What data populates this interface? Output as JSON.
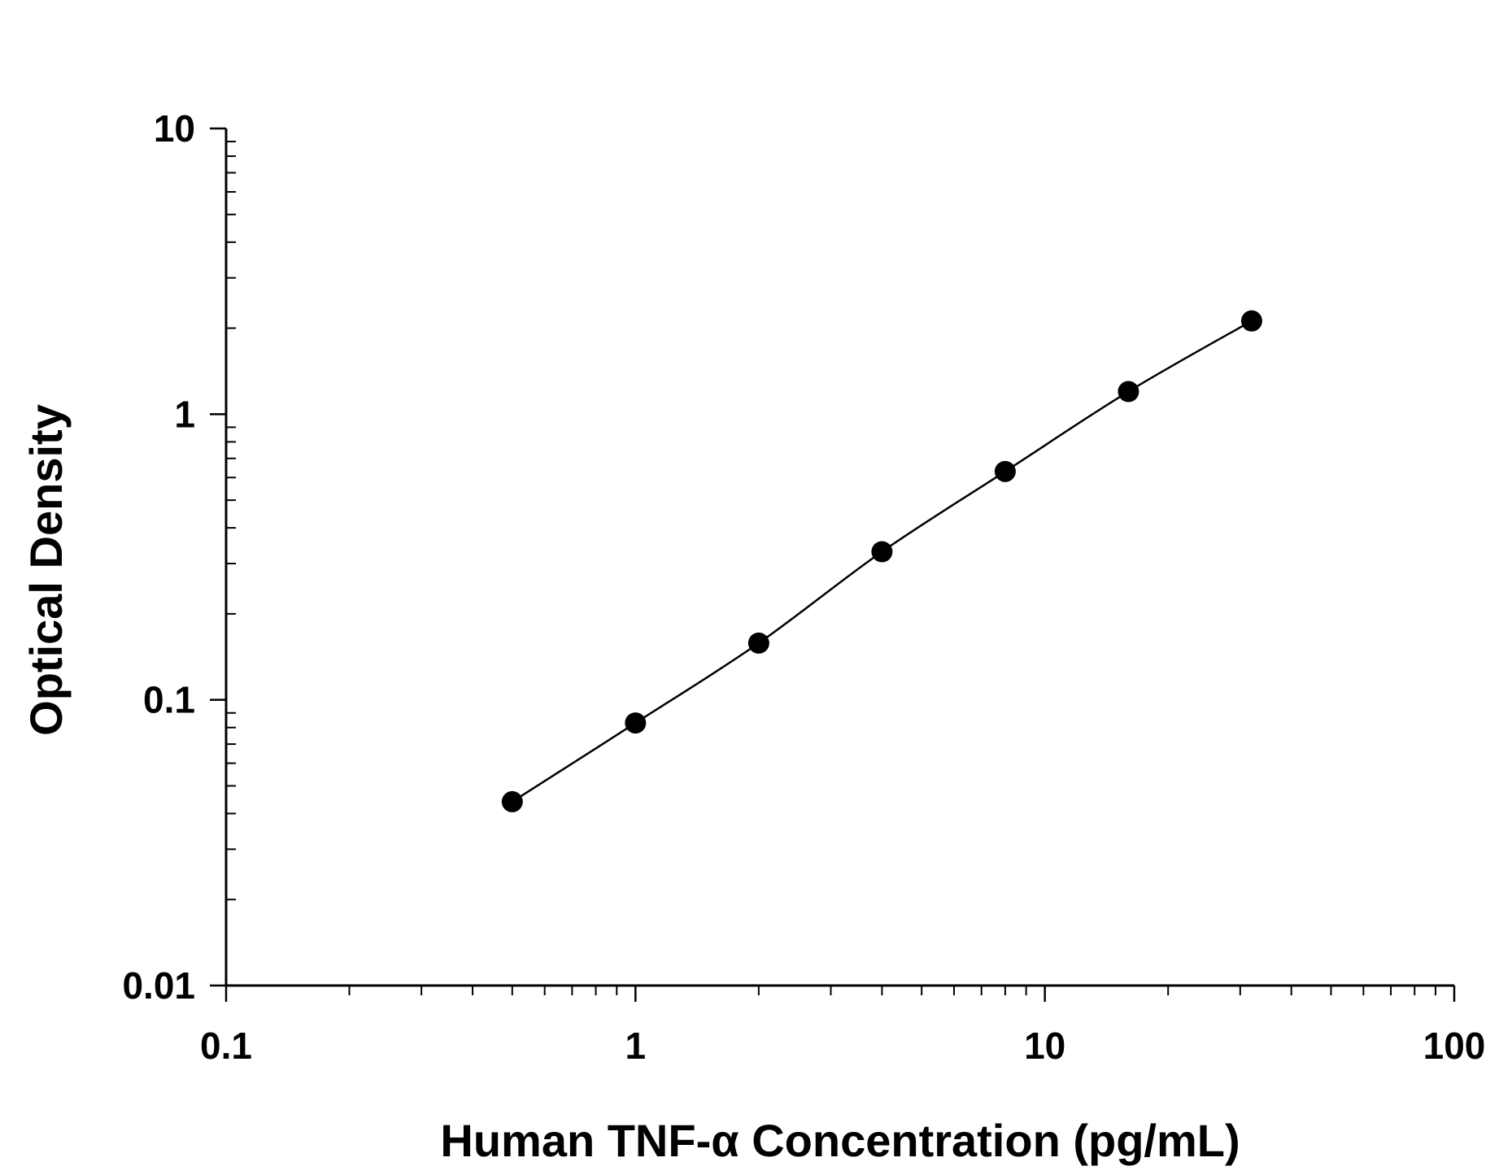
{
  "chart_data": {
    "type": "scatter",
    "title": "",
    "xlabel": "Human TNF-α Concentration (pg/mL)",
    "ylabel": "Optical Density",
    "x_scale": "log",
    "y_scale": "log",
    "xlim": [
      0.1,
      100
    ],
    "ylim": [
      0.01,
      10
    ],
    "x_ticks": [
      {
        "value": 0.1,
        "label": "0.1"
      },
      {
        "value": 1,
        "label": "1"
      },
      {
        "value": 10,
        "label": "10"
      },
      {
        "value": 100,
        "label": "100"
      }
    ],
    "y_ticks": [
      {
        "value": 0.01,
        "label": "0.01"
      },
      {
        "value": 0.1,
        "label": "0.1"
      },
      {
        "value": 1,
        "label": "1"
      },
      {
        "value": 10,
        "label": "10"
      }
    ],
    "grid": false,
    "legend": "none",
    "series": [
      {
        "x": [
          0.5,
          1,
          2,
          4,
          8,
          16,
          32
        ],
        "y": [
          0.044,
          0.083,
          0.158,
          0.33,
          0.63,
          1.2,
          2.12
        ],
        "marker": "filled-circle",
        "line": "smooth-fit",
        "color": "#000000"
      }
    ]
  }
}
